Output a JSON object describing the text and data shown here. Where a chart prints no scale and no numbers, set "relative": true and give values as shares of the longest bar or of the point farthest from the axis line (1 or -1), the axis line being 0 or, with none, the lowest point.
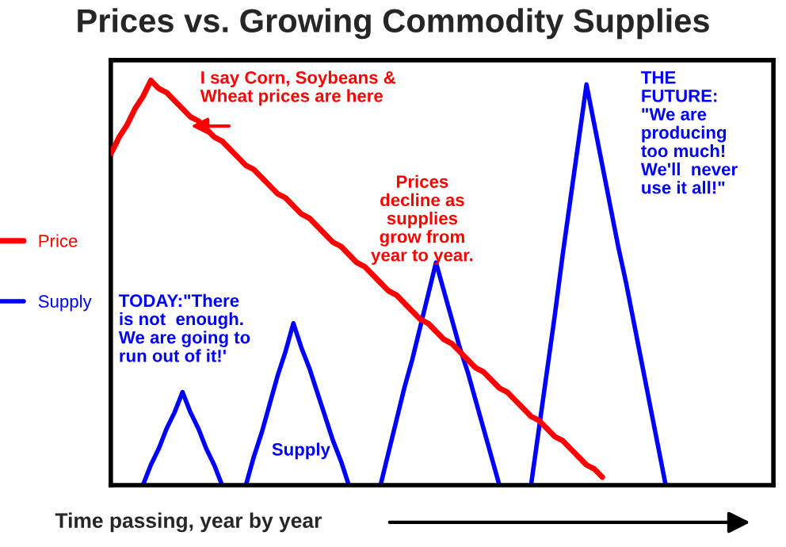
{
  "chart_data": {
    "type": "line",
    "title": "Prices vs. Growing Commodity Supplies",
    "xlabel": "Time passing, year by year",
    "relative": true,
    "legend": "left",
    "marker": "none",
    "line_style": "solid",
    "categories": [
      null,
      null,
      null,
      null,
      null,
      null,
      null,
      null,
      null,
      null,
      null,
      null,
      null,
      null,
      null,
      null,
      null,
      null,
      null,
      null,
      null,
      null,
      null,
      null,
      null,
      null,
      null,
      null,
      null,
      null,
      null,
      null,
      null,
      null,
      null,
      null,
      null,
      null,
      null,
      null,
      null,
      null,
      null,
      null,
      null,
      null,
      null,
      null,
      null,
      null,
      null,
      null,
      null,
      null,
      null,
      null,
      null,
      null,
      null,
      null,
      null,
      null,
      null,
      null,
      null,
      null,
      null,
      null,
      null,
      null,
      null,
      null,
      null,
      null,
      null,
      null,
      null,
      null,
      null,
      null,
      null,
      null,
      null,
      null
    ],
    "series": [
      {
        "name": "Price",
        "color": "#ff0000",
        "values": [
          0.82,
          0.86,
          0.89,
          0.93,
          0.96,
          1.0,
          0.98,
          0.97,
          0.95,
          0.93,
          0.91,
          0.9,
          0.88,
          0.86,
          0.85,
          0.83,
          0.81,
          0.79,
          0.78,
          0.76,
          0.74,
          0.72,
          0.71,
          0.69,
          0.67,
          0.66,
          0.64,
          0.62,
          0.6,
          0.59,
          0.57,
          0.55,
          0.54,
          0.52,
          0.5,
          0.48,
          0.47,
          0.45,
          0.43,
          0.41,
          0.4,
          0.38,
          0.36,
          0.35,
          0.33,
          0.31,
          0.29,
          0.28,
          0.26,
          0.24,
          0.23,
          0.21,
          0.19,
          0.17,
          0.16,
          0.14,
          0.12,
          0.11,
          0.09,
          0.07,
          0.05,
          0.04,
          0.02,
          null,
          null,
          null,
          null,
          null,
          null,
          null,
          null,
          null,
          null,
          null,
          null,
          null,
          null,
          null,
          null,
          null,
          null,
          null,
          null,
          null
        ]
      },
      {
        "name": "Supply",
        "color": "#0000ff",
        "values": [
          null,
          null,
          null,
          null,
          0,
          0.05,
          0.09,
          0.14,
          0.18,
          0.23,
          0.18,
          0.14,
          0.09,
          0.05,
          0,
          null,
          null,
          0,
          0.07,
          0.13,
          0.2,
          0.27,
          0.33,
          0.4,
          0.34,
          0.29,
          0.23,
          0.17,
          0.11,
          0.06,
          0,
          null,
          null,
          null,
          0,
          0.08,
          0.16,
          0.24,
          0.31,
          0.39,
          0.47,
          0.55,
          0.48,
          0.41,
          0.34,
          0.28,
          0.21,
          0.14,
          0.07,
          0,
          null,
          null,
          null,
          0,
          0.14,
          0.28,
          0.42,
          0.57,
          0.71,
          0.85,
          0.99,
          0.89,
          0.79,
          0.69,
          0.59,
          0.5,
          0.4,
          0.3,
          0.2,
          0.1,
          0,
          null,
          null,
          null,
          null,
          null,
          null,
          null,
          null,
          null,
          null,
          null,
          null,
          null
        ]
      }
    ],
    "annotations": [
      "I say Corn, Soybeans &\nWheat prices are here",
      "Prices\ndecline as\nsupplies\ngrow from\nyear to year.",
      "TODAY:\"There\nis not  enough.\nWe are going to\nrun out of it!'",
      "Supply",
      "THE\nFUTURE:\n\"We are\nproducing\ntoo much!\nWe'll  never\nuse it all!\""
    ]
  }
}
